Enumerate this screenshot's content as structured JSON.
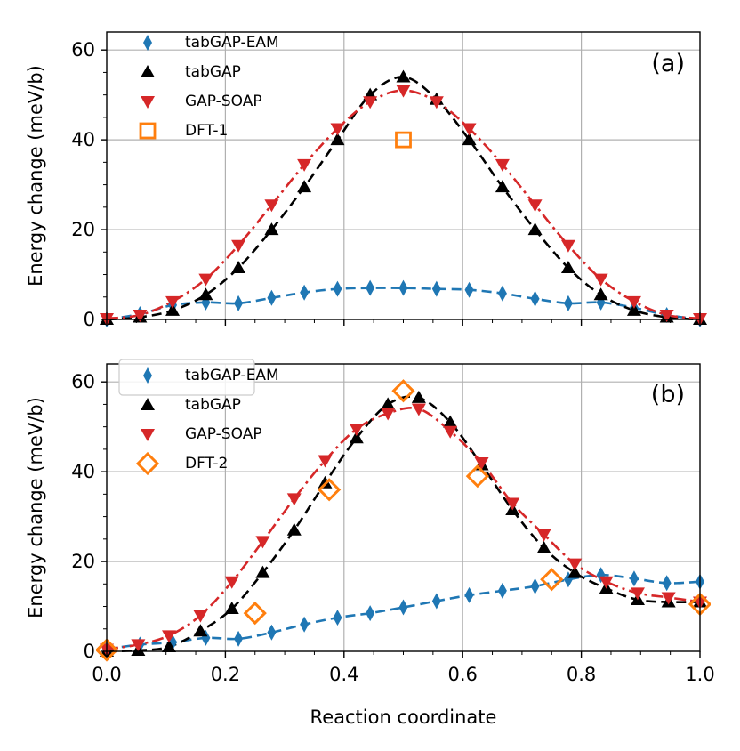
{
  "chart_data": [
    {
      "type": "line",
      "panel_label": "(a)",
      "xlabel": "",
      "ylabel": "Energy change (meV/b)",
      "xlim": [
        0,
        1
      ],
      "ylim": [
        0,
        64
      ],
      "xticks": [
        0.0,
        0.2,
        0.4,
        0.6,
        0.8,
        1.0
      ],
      "xtick_labels": [
        "",
        "",
        "",
        "",
        "",
        ""
      ],
      "yticks": [
        0,
        20,
        40,
        60
      ],
      "ytick_labels": [
        "0",
        "20",
        "40",
        "60"
      ],
      "grid": true,
      "legend_position": "top-left",
      "series": [
        {
          "name": "tabGAP-EAM",
          "color": "#1f77b4",
          "marker": "thin_diamond",
          "line": "dashed",
          "x": [
            0,
            0.056,
            0.111,
            0.167,
            0.222,
            0.278,
            0.333,
            0.389,
            0.444,
            0.5,
            0.556,
            0.611,
            0.667,
            0.722,
            0.778,
            0.833,
            0.889,
            0.944,
            1.0
          ],
          "y": [
            0,
            1.2,
            3.2,
            3.8,
            3.6,
            4.8,
            6.0,
            6.8,
            7.0,
            7.0,
            6.8,
            6.6,
            5.8,
            4.6,
            3.6,
            3.8,
            2.6,
            1.0,
            0
          ]
        },
        {
          "name": "tabGAP",
          "color": "#000000",
          "marker": "triangle_up",
          "line": "dashed",
          "x": [
            0,
            0.056,
            0.111,
            0.167,
            0.222,
            0.278,
            0.333,
            0.389,
            0.444,
            0.5,
            0.556,
            0.611,
            0.667,
            0.722,
            0.778,
            0.833,
            0.889,
            0.944,
            1.0
          ],
          "y": [
            0,
            0.5,
            2.0,
            5.5,
            11.5,
            20.0,
            29.5,
            40.0,
            50.0,
            54.0,
            49.0,
            40.0,
            29.5,
            20.0,
            11.5,
            5.5,
            2.0,
            0.5,
            0
          ]
        },
        {
          "name": "GAP-SOAP",
          "color": "#d62728",
          "marker": "triangle_down",
          "line": "dashdot",
          "x": [
            0,
            0.056,
            0.111,
            0.167,
            0.222,
            0.278,
            0.333,
            0.389,
            0.444,
            0.5,
            0.556,
            0.611,
            0.667,
            0.722,
            0.778,
            0.833,
            0.889,
            0.944,
            1.0
          ],
          "y": [
            0.2,
            1.0,
            4.0,
            9.0,
            16.5,
            25.5,
            34.5,
            42.5,
            48.5,
            51.0,
            48.5,
            42.5,
            34.5,
            25.5,
            16.5,
            9.0,
            4.0,
            1.0,
            0.2
          ]
        },
        {
          "name": "DFT-1",
          "color": "#ff7f0e",
          "marker": "square_open",
          "line": "none",
          "x": [
            0.5
          ],
          "y": [
            40.0
          ]
        }
      ]
    },
    {
      "type": "line",
      "panel_label": "(b)",
      "xlabel": "Reaction coordinate",
      "ylabel": "Energy change (meV/b)",
      "xlim": [
        0,
        1
      ],
      "ylim": [
        0,
        64
      ],
      "xticks": [
        0.0,
        0.2,
        0.4,
        0.6,
        0.8,
        1.0
      ],
      "xtick_labels": [
        "0.0",
        "0.2",
        "0.4",
        "0.6",
        "0.8",
        "1.0"
      ],
      "yticks": [
        0,
        20,
        40,
        60
      ],
      "ytick_labels": [
        "0",
        "20",
        "40",
        "60"
      ],
      "grid": true,
      "legend_position": "top-left",
      "series": [
        {
          "name": "tabGAP-EAM",
          "color": "#1f77b4",
          "marker": "thin_diamond",
          "line": "dashed",
          "x": [
            0,
            0.056,
            0.111,
            0.167,
            0.222,
            0.278,
            0.333,
            0.389,
            0.444,
            0.5,
            0.556,
            0.611,
            0.667,
            0.722,
            0.778,
            0.833,
            0.889,
            0.944,
            1.0
          ],
          "y": [
            0.5,
            1.5,
            2.0,
            3.0,
            2.8,
            4.2,
            6.0,
            7.5,
            8.5,
            9.8,
            11.2,
            12.5,
            13.5,
            14.5,
            16.0,
            17.0,
            16.2,
            15.2,
            15.5
          ]
        },
        {
          "name": "tabGAP",
          "color": "#000000",
          "marker": "triangle_up",
          "line": "dashed",
          "x": [
            0,
            0.053,
            0.105,
            0.158,
            0.211,
            0.263,
            0.316,
            0.368,
            0.421,
            0.474,
            0.526,
            0.579,
            0.632,
            0.684,
            0.737,
            0.789,
            0.842,
            0.895,
            0.947,
            1.0
          ],
          "y": [
            0,
            0.2,
            1.0,
            4.5,
            9.5,
            17.5,
            27.0,
            37.5,
            47.5,
            55.0,
            56.5,
            51.0,
            41.5,
            31.5,
            23.0,
            17.5,
            14.0,
            11.5,
            11.0,
            11.0
          ]
        },
        {
          "name": "GAP-SOAP",
          "color": "#d62728",
          "marker": "triangle_down",
          "line": "dashdot",
          "x": [
            0,
            0.053,
            0.105,
            0.158,
            0.211,
            0.263,
            0.316,
            0.368,
            0.421,
            0.474,
            0.526,
            0.579,
            0.632,
            0.684,
            0.737,
            0.789,
            0.842,
            0.895,
            0.947,
            1.0
          ],
          "y": [
            0.5,
            1.5,
            3.5,
            8.0,
            15.5,
            24.5,
            34.0,
            42.5,
            49.5,
            53.0,
            54.0,
            49.0,
            42.0,
            33.0,
            26.0,
            19.5,
            15.5,
            13.0,
            12.0,
            11.0
          ]
        },
        {
          "name": "DFT-2",
          "color": "#ff7f0e",
          "marker": "diamond_open",
          "line": "none",
          "x": [
            0,
            0.25,
            0.375,
            0.5,
            0.625,
            0.75,
            1.0
          ],
          "y": [
            0.3,
            8.5,
            36.0,
            58.0,
            39.0,
            16.0,
            10.5
          ]
        }
      ]
    }
  ]
}
